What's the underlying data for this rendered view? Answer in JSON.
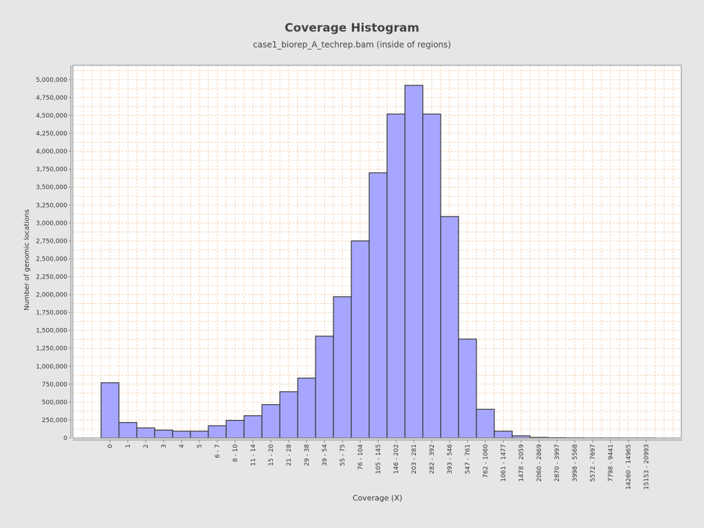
{
  "chart_data": {
    "type": "bar",
    "title": "Coverage Histogram",
    "subtitle": "case1_biorep_A_techrep.bam (inside of regions)",
    "xlabel": "Coverage (X)",
    "ylabel": "Number of genomic locations",
    "ylim": [
      0,
      5200000
    ],
    "yticks": [
      0,
      250000,
      500000,
      750000,
      1000000,
      1250000,
      1500000,
      1750000,
      2000000,
      2250000,
      2500000,
      2750000,
      3000000,
      3250000,
      3500000,
      3750000,
      4000000,
      4250000,
      4500000,
      4750000,
      5000000
    ],
    "ytick_labels": [
      "0",
      "250,000",
      "500,000",
      "750,000",
      "1,000,000",
      "1,250,000",
      "1,500,000",
      "1,750,000",
      "2,000,000",
      "2,250,000",
      "2,500,000",
      "2,750,000",
      "3,000,000",
      "3,250,000",
      "3,500,000",
      "3,750,000",
      "4,000,000",
      "4,250,000",
      "4,500,000",
      "4,750,000",
      "5,000,000"
    ],
    "categories": [
      "0",
      "1",
      "2",
      "3",
      "4",
      "5",
      "6 - 7",
      "8 - 10",
      "11 - 14",
      "15 - 20",
      "21 - 28",
      "29 - 38",
      "39 - 54",
      "55 - 75",
      "76 - 104",
      "105 - 145",
      "146 - 202",
      "203 - 281",
      "282 - 392",
      "393 - 546",
      "547 - 761",
      "762 - 1060",
      "1061 - 1477",
      "1478 - 2059",
      "2060 - 2869",
      "2870 - 3997",
      "3998 - 5568",
      "5572 - 7697",
      "7798 - 9441",
      "14260 - 14965",
      "15153 - 20993"
    ],
    "values": [
      770000,
      215000,
      140000,
      110000,
      95000,
      95000,
      170000,
      245000,
      310000,
      465000,
      645000,
      835000,
      1420000,
      1970000,
      2750000,
      3700000,
      4520000,
      4920000,
      4520000,
      3090000,
      1380000,
      400000,
      95000,
      30000,
      8000,
      4000,
      2000,
      1000,
      1000,
      500,
      500
    ],
    "grid": true,
    "colors": {
      "bar_fill": "#a6a6fe",
      "bar_stroke": "#333333",
      "plot_background": "#ffffff",
      "grid_line": "#f3c9a6",
      "page_background": "#e6e6e6"
    }
  }
}
